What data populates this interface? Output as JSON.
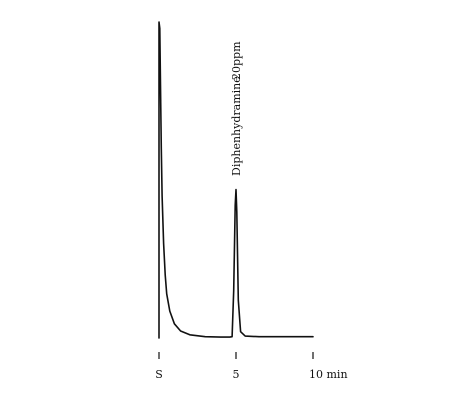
{
  "chart_data": {
    "type": "line",
    "title": "",
    "xlabel": "",
    "ylabel": "",
    "x_unit": "min",
    "xlim": [
      0,
      10
    ],
    "grid": false,
    "ticks": [
      {
        "x": 0,
        "label": "S"
      },
      {
        "x": 5,
        "label": "5"
      },
      {
        "x": 10,
        "label": "10 min"
      }
    ],
    "annotations": [
      {
        "x": 5,
        "text": "Diphenhydramine",
        "note": "20ppm"
      }
    ],
    "series": [
      {
        "name": "",
        "points": [
          [
            0.0,
            0.0
          ],
          [
            0.0,
            1.0
          ],
          [
            0.05,
            0.98
          ],
          [
            0.1,
            0.8
          ],
          [
            0.15,
            0.6
          ],
          [
            0.2,
            0.45
          ],
          [
            0.3,
            0.3
          ],
          [
            0.4,
            0.2
          ],
          [
            0.5,
            0.14
          ],
          [
            0.7,
            0.085
          ],
          [
            1.0,
            0.045
          ],
          [
            1.4,
            0.022
          ],
          [
            2.0,
            0.01
          ],
          [
            3.0,
            0.004
          ],
          [
            4.0,
            0.003
          ],
          [
            4.6,
            0.003
          ],
          [
            4.75,
            0.004
          ],
          [
            4.85,
            0.15
          ],
          [
            4.95,
            0.42
          ],
          [
            5.0,
            0.47
          ],
          [
            5.05,
            0.4
          ],
          [
            5.15,
            0.12
          ],
          [
            5.3,
            0.02
          ],
          [
            5.6,
            0.006
          ],
          [
            6.5,
            0.004
          ],
          [
            8.0,
            0.004
          ],
          [
            10.0,
            0.004
          ]
        ]
      }
    ],
    "ylim": [
      0,
      1
    ]
  }
}
